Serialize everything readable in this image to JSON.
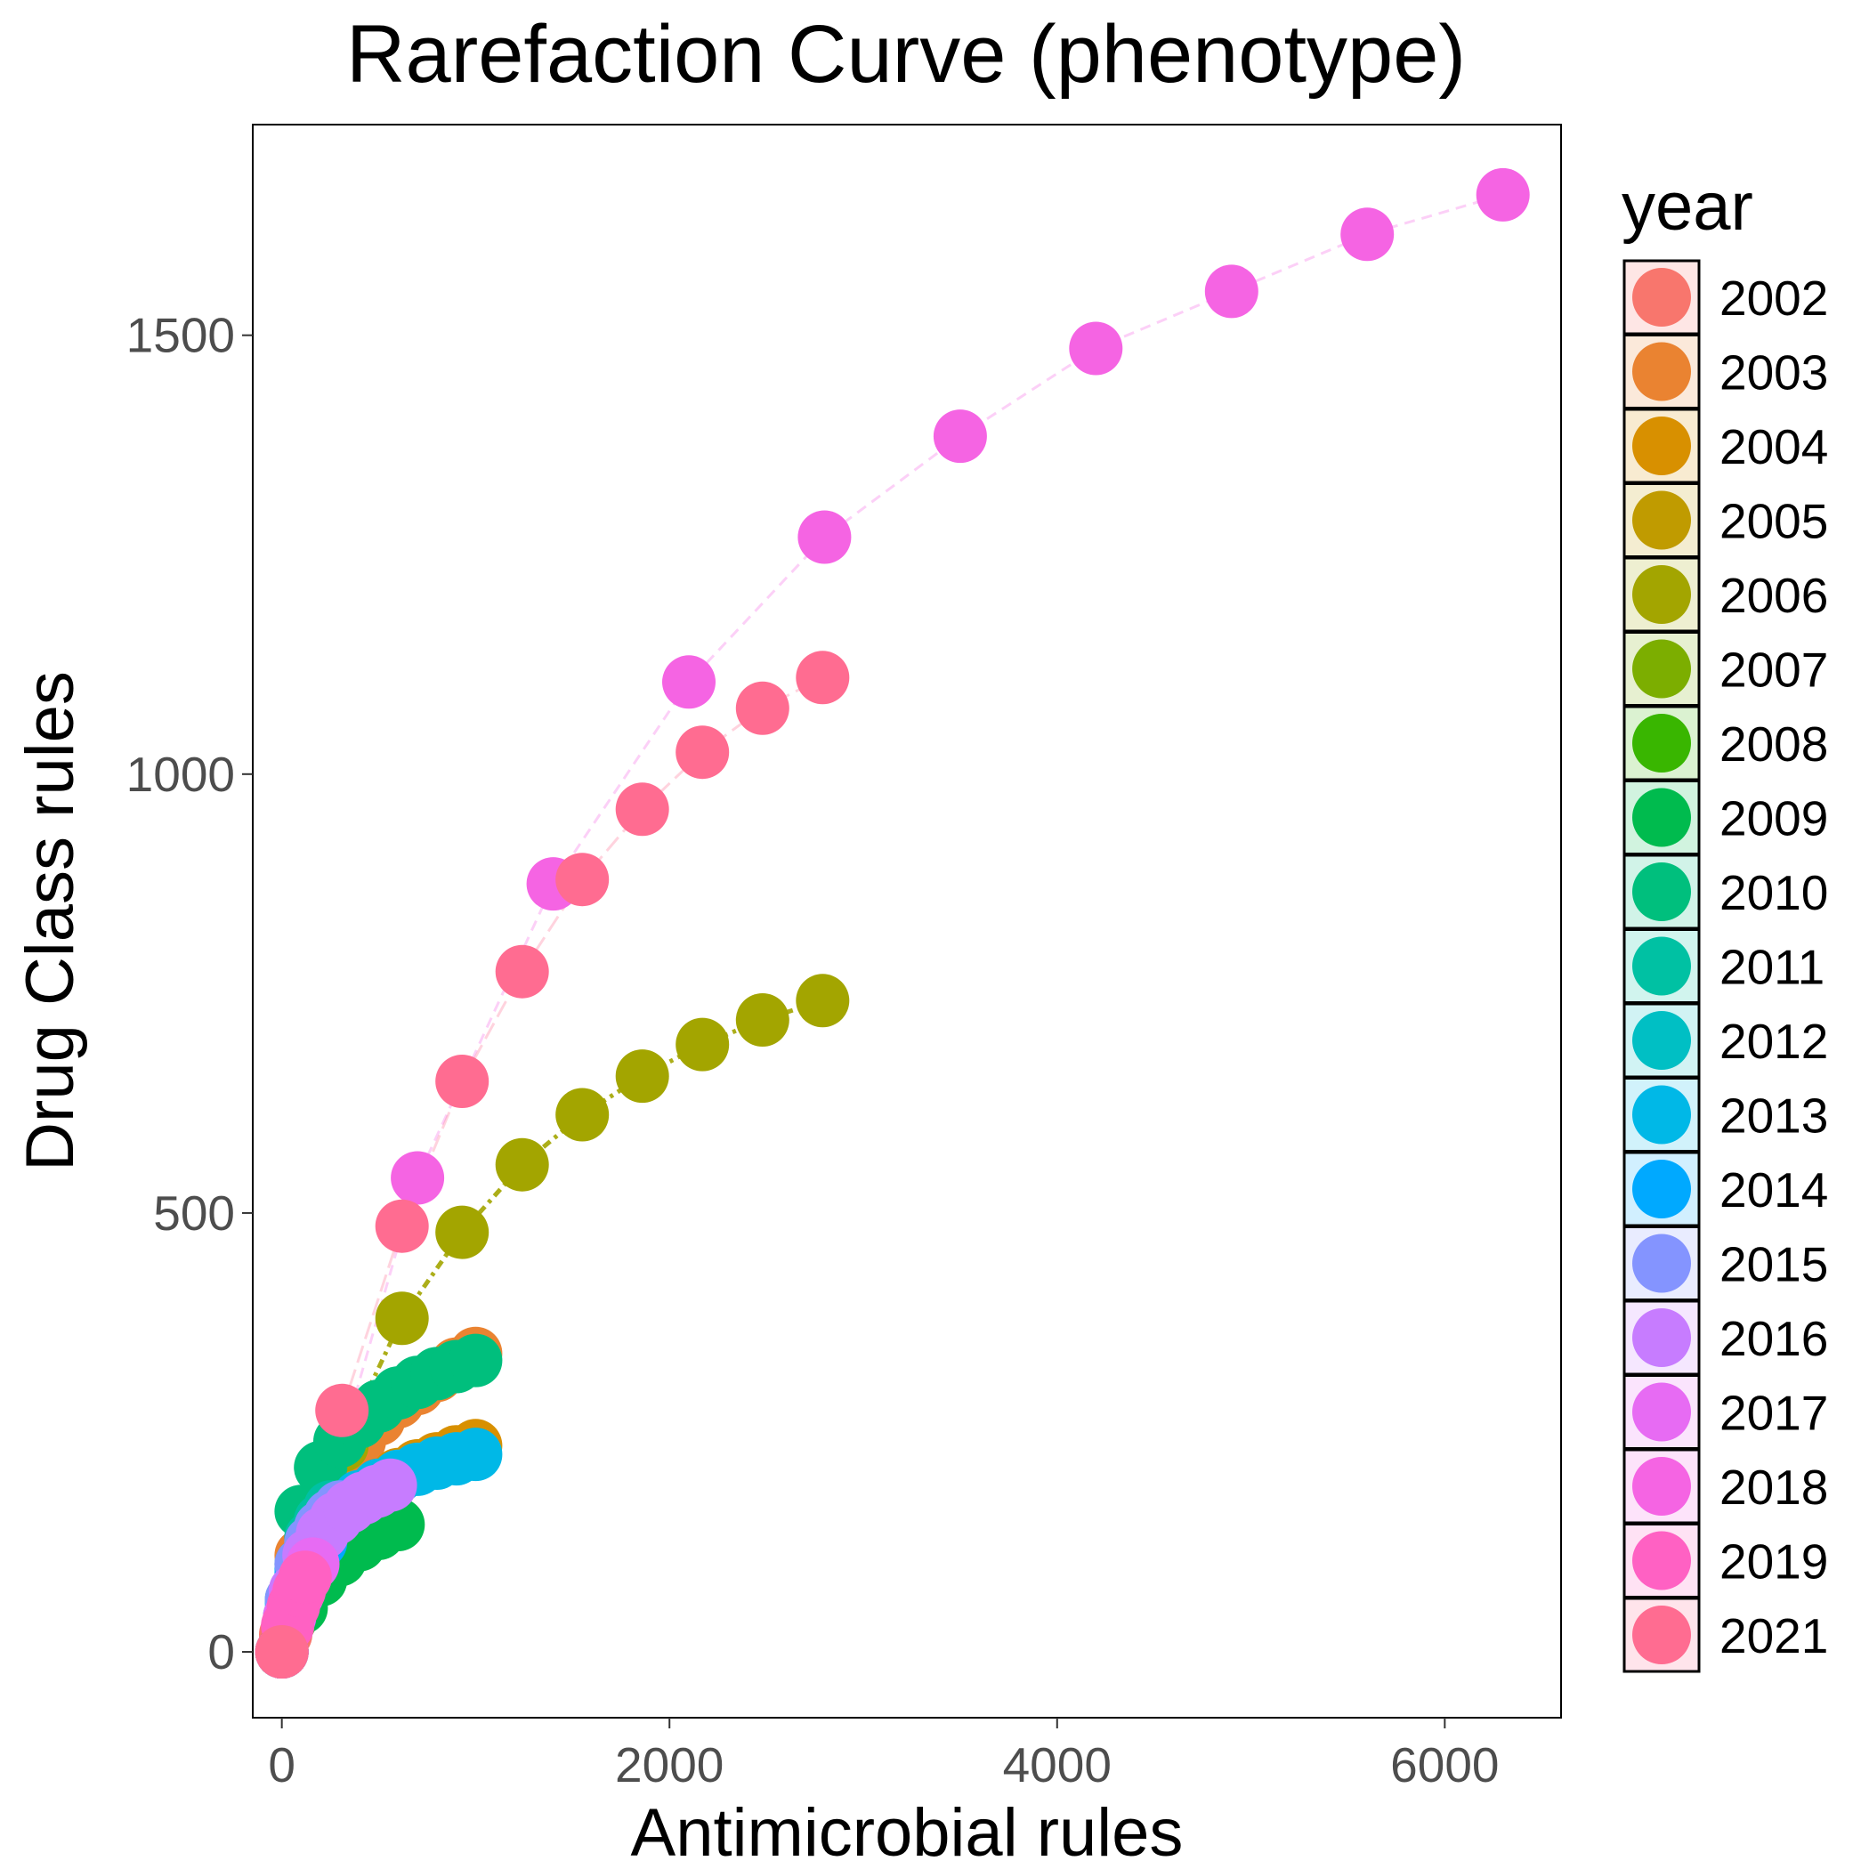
{
  "chart_data": {
    "type": "scatter",
    "title": "Rarefaction Curve (phenotype)",
    "xlabel": "Antimicrobial rules",
    "ylabel": "Drug Class rules",
    "xlim": [
      -150,
      6600
    ],
    "ylim": [
      -75,
      1740
    ],
    "x_ticks": [
      0,
      2000,
      4000,
      6000
    ],
    "x_tick_labels": [
      "0",
      "2000",
      "4000",
      "6000"
    ],
    "y_ticks": [
      0,
      500,
      1000,
      1500
    ],
    "y_tick_labels": [
      "0",
      "500",
      "1000",
      "1500"
    ],
    "grid": false,
    "legend": {
      "title": "year",
      "position": "right"
    },
    "series": [
      {
        "name": "2002",
        "color": "#F8766D",
        "x": [
          0,
          20,
          40,
          60,
          80,
          100
        ],
        "y": [
          0,
          20,
          38,
          52,
          64,
          74
        ]
      },
      {
        "name": "2003",
        "color": "#EA8331",
        "x": [
          0,
          100,
          200,
          300,
          400,
          500,
          600,
          700,
          800,
          900,
          1000
        ],
        "y": [
          0,
          110,
          165,
          205,
          240,
          265,
          285,
          300,
          315,
          328,
          340
        ]
      },
      {
        "name": "2004",
        "color": "#D89000",
        "x": [
          0,
          100,
          200,
          300,
          400,
          500,
          600,
          700,
          800,
          900,
          1000
        ],
        "y": [
          0,
          80,
          125,
          155,
          175,
          190,
          202,
          212,
          220,
          228,
          235
        ]
      },
      {
        "name": "2005",
        "color": "#C09B00",
        "x": [
          0,
          50,
          100,
          150,
          200
        ],
        "y": [
          0,
          40,
          70,
          95,
          115
        ]
      },
      {
        "name": "2006",
        "color": "#A3A500",
        "x": [
          0,
          310,
          620,
          930,
          1240,
          1550,
          1860,
          2170,
          2480,
          2790
        ],
        "y": [
          0,
          235,
          380,
          478,
          555,
          612,
          656,
          692,
          720,
          742
        ]
      },
      {
        "name": "2007",
        "color": "#7CAE00",
        "x": [
          0,
          60,
          120,
          180
        ],
        "y": [
          0,
          45,
          80,
          105
        ]
      },
      {
        "name": "2008",
        "color": "#39B600",
        "x": [
          0,
          40,
          80,
          120
        ],
        "y": [
          0,
          35,
          60,
          80
        ]
      },
      {
        "name": "2009",
        "color": "#00BB4E",
        "x": [
          0,
          100,
          200,
          300,
          400,
          500,
          600
        ],
        "y": [
          0,
          50,
          82,
          105,
          122,
          135,
          145
        ]
      },
      {
        "name": "2010",
        "color": "#00BF7D",
        "x": [
          0,
          100,
          200,
          300,
          400,
          500,
          600,
          700,
          800,
          900,
          1000
        ],
        "y": [
          0,
          160,
          210,
          240,
          262,
          280,
          295,
          307,
          317,
          325,
          332
        ]
      },
      {
        "name": "2011",
        "color": "#00C1A3",
        "x": [
          0,
          50,
          100,
          150,
          200,
          250
        ],
        "y": [
          0,
          60,
          100,
          130,
          150,
          165
        ]
      },
      {
        "name": "2012",
        "color": "#00BFC4",
        "x": [
          0,
          40,
          80,
          120,
          160
        ],
        "y": [
          0,
          40,
          70,
          92,
          110
        ]
      },
      {
        "name": "2013",
        "color": "#00B8E7",
        "x": [
          0,
          100,
          200,
          300,
          400,
          500,
          600,
          700,
          800,
          900,
          1000
        ],
        "y": [
          0,
          95,
          135,
          160,
          177,
          190,
          200,
          208,
          215,
          220,
          225
        ]
      },
      {
        "name": "2014",
        "color": "#00A9FF",
        "x": [
          0,
          50,
          100,
          150,
          200
        ],
        "y": [
          0,
          55,
          90,
          110,
          125
        ]
      },
      {
        "name": "2015",
        "color": "#8494FF",
        "x": [
          0,
          50,
          100,
          150,
          200,
          250,
          300
        ],
        "y": [
          0,
          60,
          100,
          125,
          142,
          155,
          165
        ]
      },
      {
        "name": "2016",
        "color": "#C77CFF",
        "x": [
          0,
          70,
          140,
          210,
          280,
          350,
          420,
          490,
          560
        ],
        "y": [
          0,
          70,
          110,
          135,
          152,
          165,
          175,
          183,
          190
        ]
      },
      {
        "name": "2017",
        "color": "#E76BF3",
        "x": [
          0,
          40,
          80,
          120,
          160
        ],
        "y": [
          0,
          40,
          65,
          85,
          100
        ]
      },
      {
        "name": "2018",
        "color": "#F564E3",
        "x": [
          0,
          700,
          1400,
          2100,
          2800,
          3500,
          4200,
          4900,
          5600,
          6300
        ],
        "y": [
          0,
          540,
          875,
          1105,
          1270,
          1385,
          1485,
          1550,
          1615,
          1660
        ]
      },
      {
        "name": "2019",
        "color": "#FF61C3",
        "x": [
          0,
          30,
          60,
          90,
          120
        ],
        "y": [
          0,
          30,
          52,
          70,
          85
        ]
      },
      {
        "name": "2021",
        "color": "#FF6C91",
        "x": [
          0,
          310,
          620,
          930,
          1240,
          1550,
          1860,
          2170,
          2480,
          2790
        ],
        "y": [
          0,
          275,
          485,
          650,
          775,
          880,
          960,
          1025,
          1075,
          1110
        ]
      }
    ]
  }
}
